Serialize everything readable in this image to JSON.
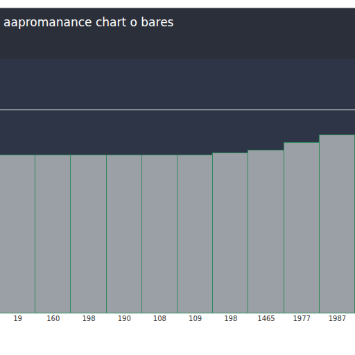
{
  "chart_data": {
    "type": "bar",
    "title": "aapromanance chart o bares",
    "categories": [
      "19",
      "160",
      "198",
      "190",
      "108",
      "109",
      "198",
      "1465",
      "1977",
      "1987"
    ],
    "values": [
      62,
      62,
      62,
      62,
      62,
      62,
      63,
      64,
      67,
      70
    ],
    "color": "#9aa0a6",
    "ylim": [
      0,
      100
    ],
    "yticks": [
      0,
      20,
      40,
      60,
      80,
      100
    ],
    "grid": true,
    "tick_labels": "x"
  }
}
